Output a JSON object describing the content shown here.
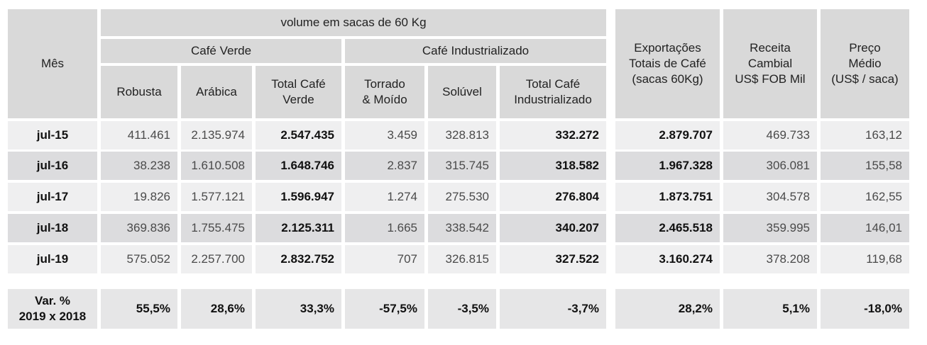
{
  "header": {
    "month": "Mês",
    "volume": "volume em sacas de 60 Kg",
    "cafe_verde": "Café Verde",
    "cafe_industrializado": "Café Industrializado",
    "robusta": "Robusta",
    "arabica": "Arábica",
    "total_verde": "Total Café\nVerde",
    "torrado": "Torrado\n& Moído",
    "soluvel": "Solúvel",
    "total_ind": "Total Café\nIndustrializado",
    "exportacoes": "Exportações\nTotais de Café\n(sacas 60Kg)",
    "receita": "Receita\nCambial\nUS$ FOB Mil",
    "preco": "Preço\nMédio\n(US$ / saca)"
  },
  "rows": [
    {
      "month": "jul-15",
      "robusta": "411.461",
      "arabica": "2.135.974",
      "total_verde": "2.547.435",
      "torrado": "3.459",
      "soluvel": "328.813",
      "total_ind": "332.272",
      "export": "2.879.707",
      "receita": "469.733",
      "preco": "163,12"
    },
    {
      "month": "jul-16",
      "robusta": "38.238",
      "arabica": "1.610.508",
      "total_verde": "1.648.746",
      "torrado": "2.837",
      "soluvel": "315.745",
      "total_ind": "318.582",
      "export": "1.967.328",
      "receita": "306.081",
      "preco": "155,58"
    },
    {
      "month": "jul-17",
      "robusta": "19.826",
      "arabica": "1.577.121",
      "total_verde": "1.596.947",
      "torrado": "1.274",
      "soluvel": "275.530",
      "total_ind": "276.804",
      "export": "1.873.751",
      "receita": "304.578",
      "preco": "162,55"
    },
    {
      "month": "jul-18",
      "robusta": "369.836",
      "arabica": "1.755.475",
      "total_verde": "2.125.311",
      "torrado": "1.665",
      "soluvel": "338.542",
      "total_ind": "340.207",
      "export": "2.465.518",
      "receita": "359.995",
      "preco": "146,01"
    },
    {
      "month": "jul-19",
      "robusta": "575.052",
      "arabica": "2.257.700",
      "total_verde": "2.832.752",
      "torrado": "707",
      "soluvel": "326.815",
      "total_ind": "327.522",
      "export": "3.160.274",
      "receita": "378.208",
      "preco": "119,68"
    }
  ],
  "variation": {
    "label": "Var. %\n2019 x 2018",
    "robusta": "55,5%",
    "arabica": "28,6%",
    "total_verde": "33,3%",
    "torrado": "-57,5%",
    "soluvel": "-3,5%",
    "total_ind": "-3,7%",
    "export": "28,2%",
    "receita": "5,1%",
    "preco": "-18,0%"
  },
  "colors": {
    "header_bg": "#d9d9d9",
    "row_light": "#efeff0",
    "row_dark": "#dcdcde",
    "variation_bg": "#e6e6e7"
  }
}
